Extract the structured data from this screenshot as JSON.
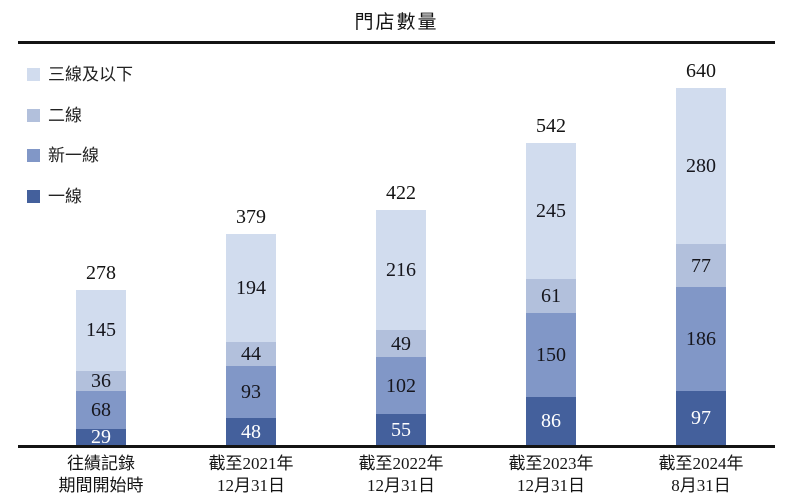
{
  "chart_data": {
    "type": "bar",
    "stacked": true,
    "title": "門店數量",
    "categories": [
      [
        "往績記錄",
        "期間開始時"
      ],
      [
        "截至2021年",
        "12月31日"
      ],
      [
        "截至2022年",
        "12月31日"
      ],
      [
        "截至2023年",
        "12月31日"
      ],
      [
        "截至2024年",
        "8月31日"
      ]
    ],
    "series": [
      {
        "name": "一線",
        "color": "#44609c",
        "text_color": "#ffffff",
        "values": [
          29,
          48,
          55,
          86,
          97
        ]
      },
      {
        "name": "新一線",
        "color": "#8197c7",
        "text_color": "#16161d",
        "values": [
          68,
          93,
          102,
          150,
          186
        ]
      },
      {
        "name": "二線",
        "color": "#b2c0dc",
        "text_color": "#16161d",
        "values": [
          36,
          44,
          49,
          61,
          77
        ]
      },
      {
        "name": "三線及以下",
        "color": "#d1dcee",
        "text_color": "#16161d",
        "values": [
          145,
          194,
          216,
          245,
          280
        ]
      }
    ],
    "totals": [
      278,
      379,
      422,
      542,
      640
    ],
    "ylim": [
      0,
      640
    ],
    "grid": false,
    "legend_position": "top-left",
    "legend_order": [
      "三線及以下",
      "二線",
      "新一線",
      "一線"
    ],
    "axis_line_color": "#141414"
  }
}
